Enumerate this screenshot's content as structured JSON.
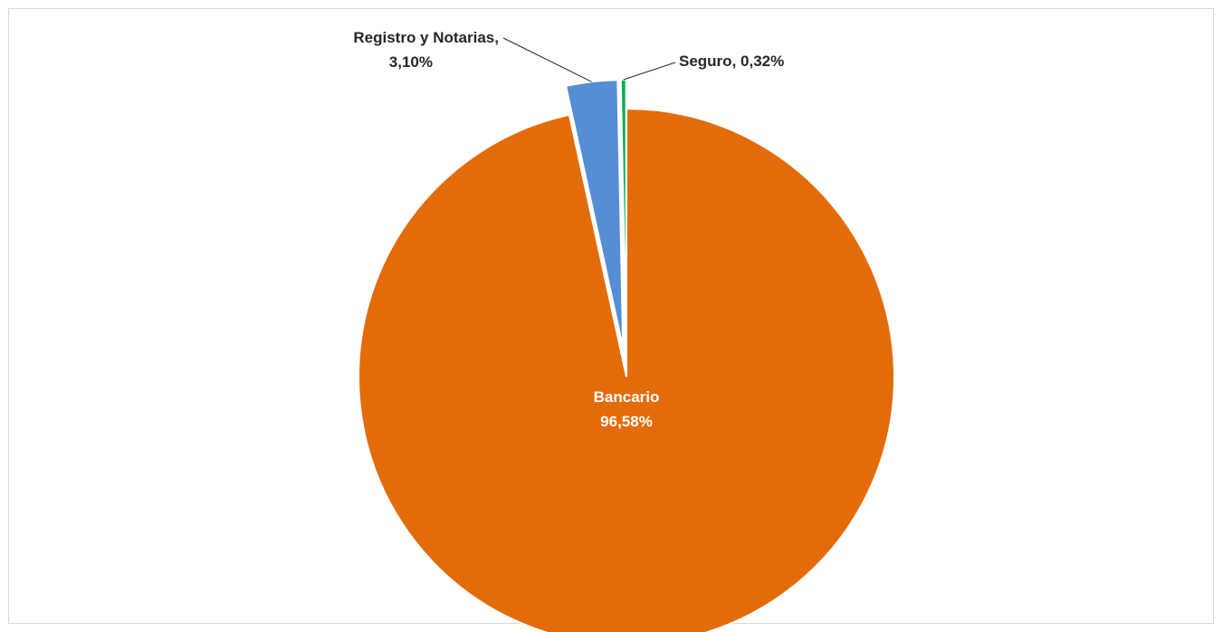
{
  "chart_data": {
    "type": "pie",
    "title": "",
    "slices": [
      {
        "name": "Bancario",
        "value": 96.58,
        "label": "96,58%",
        "color": "#E36C0A",
        "exploded": false
      },
      {
        "name": "Registro y Notarias",
        "value": 3.1,
        "label": "3,10%",
        "color": "#558ED5",
        "exploded": true
      },
      {
        "name": "Seguro",
        "value": 0.32,
        "label": "0,32%",
        "color": "#00B050",
        "exploded": true
      }
    ],
    "start_angle_deg": 0,
    "direction": "clockwise",
    "legend": "none"
  }
}
